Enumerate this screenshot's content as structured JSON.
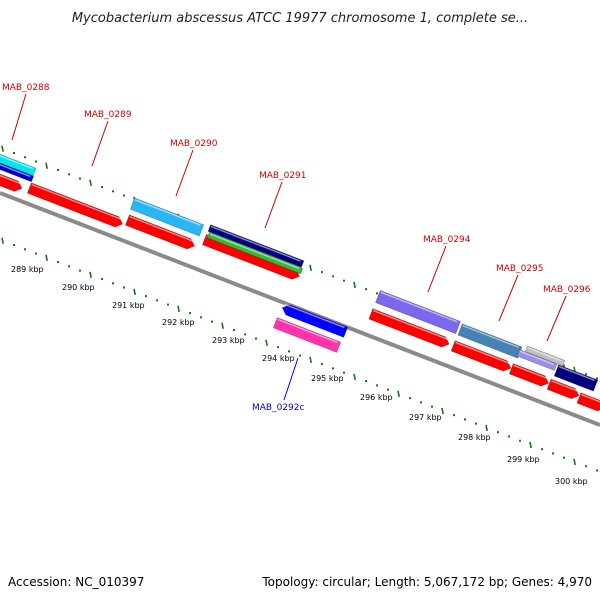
{
  "title": "Mycobacterium abscessus ATCC 19977 chromosome 1, complete se...",
  "footer": {
    "accession": "Accession: NC_010397",
    "summary": "Topology: circular; Length: 5,067,172 bp; Genes: 4,970"
  },
  "colors": {
    "backbone": "#8a8a8a",
    "forward_label": "#cc0000",
    "reverse_label": "#0000cc",
    "tick": "#117711",
    "cds": "#ff0000",
    "cds_outline": "#990000"
  },
  "ticks": [
    {
      "label": "289 kbp"
    },
    {
      "label": "290 kbp"
    },
    {
      "label": "291 kbp"
    },
    {
      "label": "292 kbp"
    },
    {
      "label": "293 kbp"
    },
    {
      "label": "294 kbp"
    },
    {
      "label": "295 kbp"
    },
    {
      "label": "296 kbp"
    },
    {
      "label": "297 kbp"
    },
    {
      "label": "298 kbp"
    },
    {
      "label": "299 kbp"
    },
    {
      "label": "300 kbp"
    }
  ],
  "genes": [
    {
      "name": "MAB_0288",
      "strand": "+",
      "feature_color": "#00e5ee",
      "feature2_color": "#0000cc"
    },
    {
      "name": "MAB_0289",
      "strand": "+"
    },
    {
      "name": "MAB_0290",
      "strand": "+",
      "feature_color": "#29b6f6"
    },
    {
      "name": "MAB_0291",
      "strand": "+",
      "feature_color": "#000080",
      "feature2_color": "#33bb33"
    },
    {
      "name": "MAB_0292c",
      "strand": "-",
      "feature_color": "#0000ff",
      "feature2_color": "#ff33aa"
    },
    {
      "name": "MAB_0294",
      "strand": "+",
      "feature_color": "#7b68ee"
    },
    {
      "name": "MAB_0295",
      "strand": "+",
      "feature_color": "#4682b4"
    },
    {
      "name": "MAB_0296",
      "strand": "+",
      "feature_color": "#000080"
    }
  ]
}
